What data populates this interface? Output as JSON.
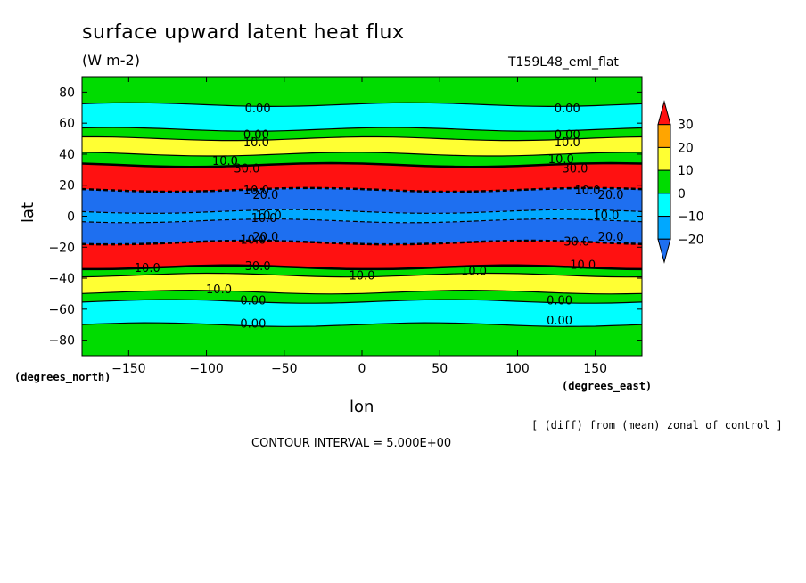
{
  "chart_data": {
    "type": "heatmap",
    "title": "surface upward latent heat flux",
    "units": "(W m-2)",
    "run_label": "T159L48_eml_flat",
    "xlabel": "lon",
    "ylabel": "lat",
    "x_unit_note": "(degrees_east)",
    "y_unit_note": "(degrees_north)",
    "note": "[ (diff) from (mean) zonal of control ]",
    "contour_interval_text": "CONTOUR INTERVAL = 5.000E+00",
    "xlim": [
      -180,
      180
    ],
    "ylim": [
      -90,
      90
    ],
    "x_ticks": [
      -150,
      -100,
      -50,
      0,
      50,
      100,
      150
    ],
    "x_tick_labels": [
      "−150",
      "−100",
      "−50",
      "0",
      "50",
      "100",
      "150"
    ],
    "y_ticks": [
      80,
      60,
      40,
      20,
      0,
      -20,
      -40,
      -60,
      -80
    ],
    "y_tick_labels": [
      "80",
      "60",
      "40",
      "20",
      "0",
      "−20",
      "−40",
      "−60",
      "−80"
    ],
    "colorbar": {
      "levels": [
        -25,
        -20,
        -10,
        0,
        10,
        20,
        30,
        35
      ],
      "labels": [
        "30",
        "20",
        "10",
        "0",
        "−10",
        "−20"
      ],
      "label_values": [
        30,
        20,
        10,
        0,
        -10,
        -20
      ],
      "colors": [
        "#1e6ff0",
        "#00a8ff",
        "#00ffff",
        "#00dc00",
        "#ffff33",
        "#ffa500",
        "#ff1111"
      ]
    },
    "bands": [
      {
        "lat_from": 90,
        "lat_to": 72,
        "value": 5
      },
      {
        "lat_from": 72,
        "lat_to": 56,
        "value": -5
      },
      {
        "lat_from": 56,
        "lat_to": 50,
        "value": 5
      },
      {
        "lat_from": 50,
        "lat_to": 40,
        "value": 15
      },
      {
        "lat_from": 40,
        "lat_to": 33,
        "value": 5
      },
      {
        "lat_from": 33,
        "lat_to": 17,
        "value": 35
      },
      {
        "lat_from": 17,
        "lat_to": 3,
        "value": -25
      },
      {
        "lat_from": 3,
        "lat_to": -3,
        "value": -15
      },
      {
        "lat_from": -3,
        "lat_to": -17,
        "value": -25
      },
      {
        "lat_from": -17,
        "lat_to": -33,
        "value": 35
      },
      {
        "lat_from": -33,
        "lat_to": -38,
        "value": 5
      },
      {
        "lat_from": -38,
        "lat_to": -49,
        "value": 15
      },
      {
        "lat_from": -49,
        "lat_to": -55,
        "value": 5
      },
      {
        "lat_from": -55,
        "lat_to": -70,
        "value": -5
      },
      {
        "lat_from": -70,
        "lat_to": -90,
        "value": 5
      }
    ],
    "contour_labels": [
      {
        "lon": -67,
        "lat": 70,
        "text": "0.00"
      },
      {
        "lon": 132,
        "lat": 70,
        "text": "0.00"
      },
      {
        "lon": -68,
        "lat": 53,
        "text": "0.00"
      },
      {
        "lon": 132,
        "lat": 53,
        "text": "0.00"
      },
      {
        "lon": -68,
        "lat": 48,
        "text": "10.0"
      },
      {
        "lon": 132,
        "lat": 48,
        "text": "10.0"
      },
      {
        "lon": -88,
        "lat": 36,
        "text": "10.0"
      },
      {
        "lon": 128,
        "lat": 37,
        "text": "10.0"
      },
      {
        "lon": -74,
        "lat": 31,
        "text": "30.0"
      },
      {
        "lon": 137,
        "lat": 31,
        "text": "30.0"
      },
      {
        "lon": -68,
        "lat": 17,
        "text": "10.0"
      },
      {
        "lon": -62,
        "lat": 14,
        "text": "20.0"
      },
      {
        "lon": 145,
        "lat": 17,
        "text": "10.0"
      },
      {
        "lon": 160,
        "lat": 14,
        "text": "20.0"
      },
      {
        "lon": -60,
        "lat": 1,
        "text": "10.0"
      },
      {
        "lon": -63,
        "lat": -1,
        "text": "10.0"
      },
      {
        "lon": 157,
        "lat": 1,
        "text": "10.0"
      },
      {
        "lon": -70,
        "lat": -15,
        "text": "10.0"
      },
      {
        "lon": -62,
        "lat": -13,
        "text": "20.0"
      },
      {
        "lon": 138,
        "lat": -16,
        "text": "30.0"
      },
      {
        "lon": 160,
        "lat": -13,
        "text": "20.0"
      },
      {
        "lon": -67,
        "lat": -32,
        "text": "30.0"
      },
      {
        "lon": 142,
        "lat": -31,
        "text": "10.0"
      },
      {
        "lon": -138,
        "lat": -33,
        "text": "10.0"
      },
      {
        "lon": 0,
        "lat": -38,
        "text": "10.0"
      },
      {
        "lon": 72,
        "lat": -35,
        "text": "10.0"
      },
      {
        "lon": -92,
        "lat": -47,
        "text": "10.0"
      },
      {
        "lon": -70,
        "lat": -54,
        "text": "0.00"
      },
      {
        "lon": 127,
        "lat": -54,
        "text": "0.00"
      },
      {
        "lon": -70,
        "lat": -69,
        "text": "0.00"
      },
      {
        "lon": 127,
        "lat": -67,
        "text": "0.00"
      }
    ]
  }
}
